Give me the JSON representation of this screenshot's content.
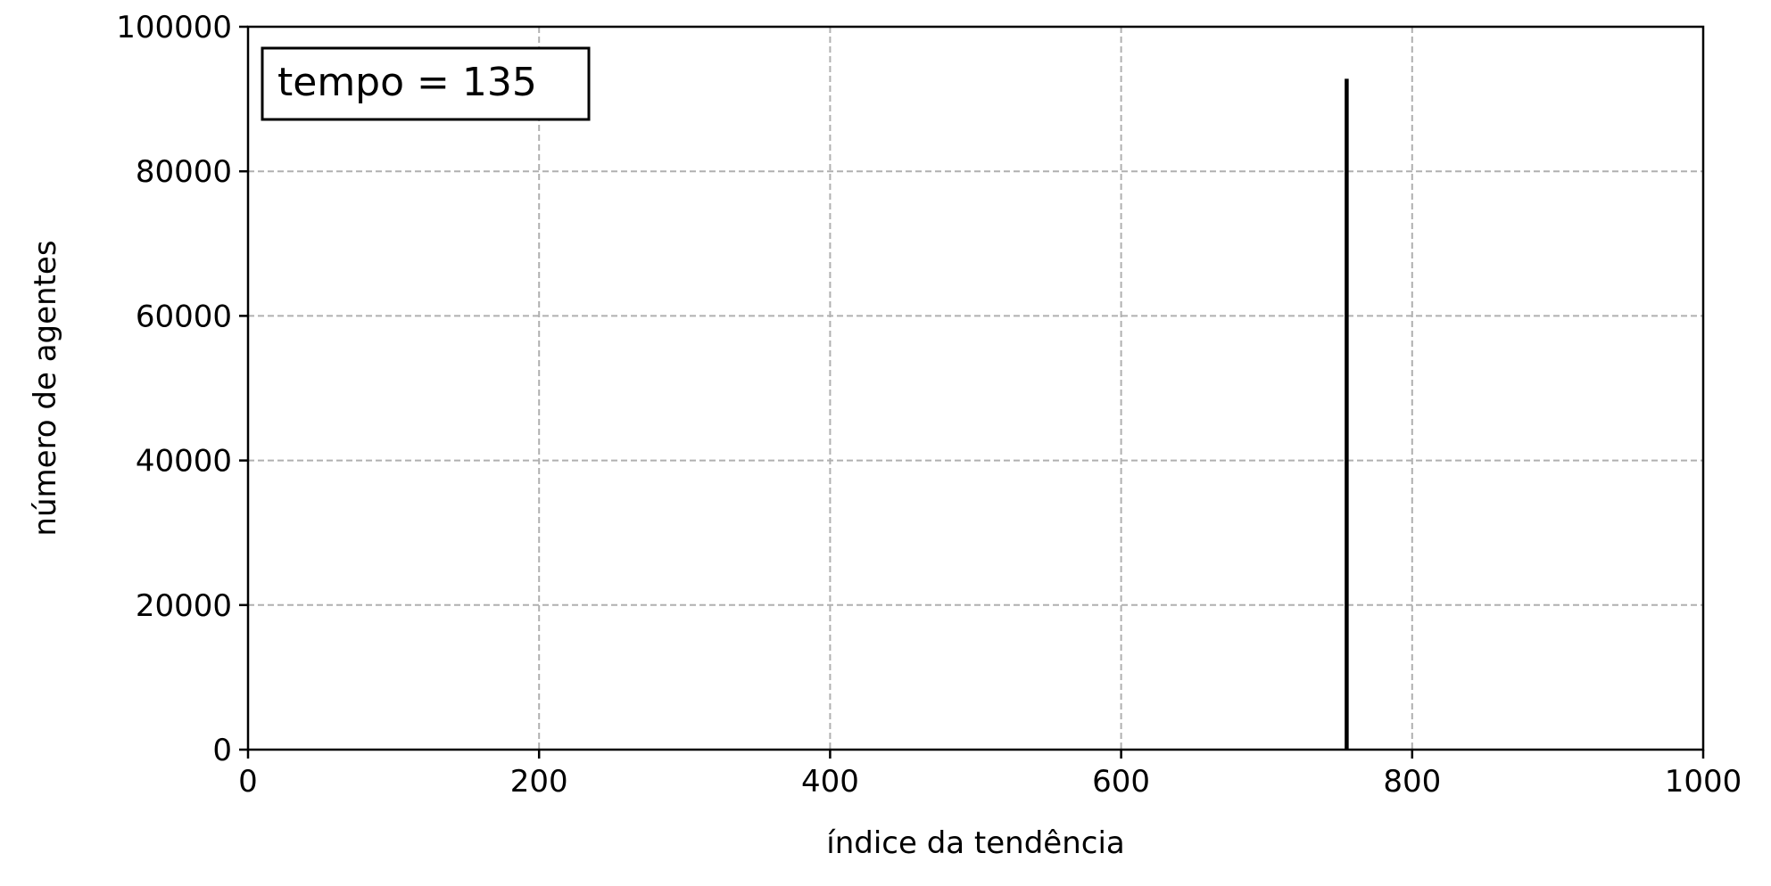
{
  "chart_data": {
    "type": "bar",
    "title": "",
    "xlabel": "índice da tendência",
    "ylabel": "número de agentes",
    "xlim": [
      0,
      1000
    ],
    "ylim": [
      0,
      100000
    ],
    "xticks": [
      0,
      200,
      400,
      600,
      800,
      1000
    ],
    "yticks": [
      0,
      20000,
      40000,
      60000,
      80000,
      100000
    ],
    "grid": true,
    "annotation": "tempo = 135",
    "annotation_position": "top-left",
    "series": [
      {
        "x": [
          755
        ],
        "values": [
          92800
        ],
        "color": "#000000"
      }
    ]
  }
}
